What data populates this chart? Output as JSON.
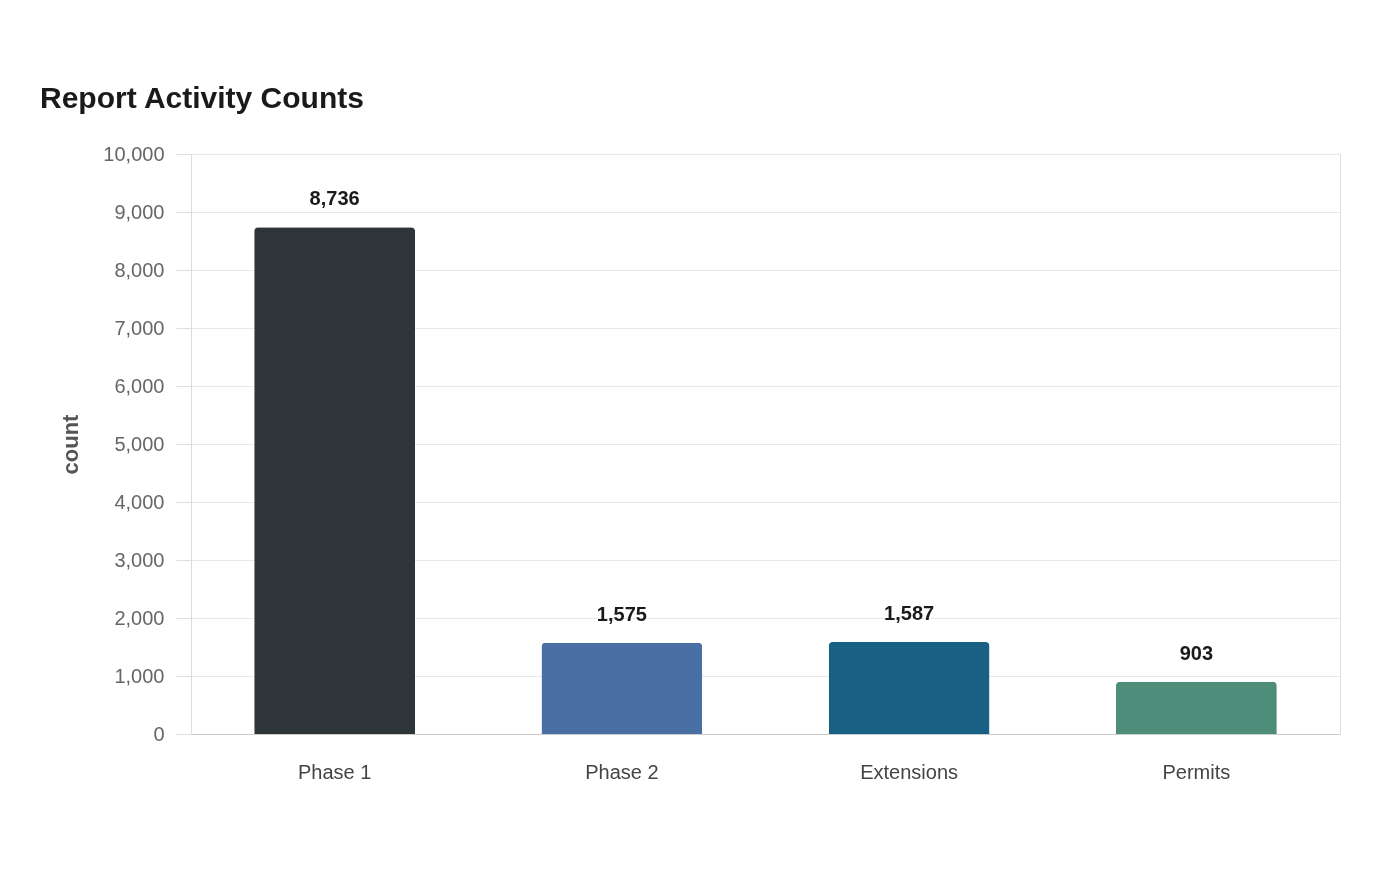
{
  "chart_data": {
    "type": "bar",
    "title": "Report Activity Counts",
    "ylabel": "count",
    "categories": [
      "Phase 1",
      "Phase 2",
      "Extensions",
      "Permits"
    ],
    "values": [
      8736,
      1575,
      1587,
      903
    ],
    "value_labels": [
      "8,736",
      "1,575",
      "1,587",
      "903"
    ],
    "colors": [
      "#2d3538",
      "#4a6fa5",
      "#186185",
      "#4e8d7a"
    ],
    "ylim": [
      0,
      10000
    ],
    "yticks": [
      0,
      {
        "value": 1000,
        "label": "1,000"
      },
      {
        "value": 2000,
        "label": "2,000"
      },
      {
        "value": 3000,
        "label": "3,000"
      },
      {
        "value": 4000,
        "label": "4,000"
      },
      {
        "value": 5000,
        "label": "5,000"
      },
      {
        "value": 6000,
        "label": "6,000"
      },
      {
        "value": 7000,
        "label": "7,000"
      },
      {
        "value": 8000,
        "label": "8,000"
      },
      {
        "value": 9000,
        "label": "9,000"
      },
      {
        "value": 10000,
        "label": "10,000"
      }
    ],
    "grid": "y"
  }
}
